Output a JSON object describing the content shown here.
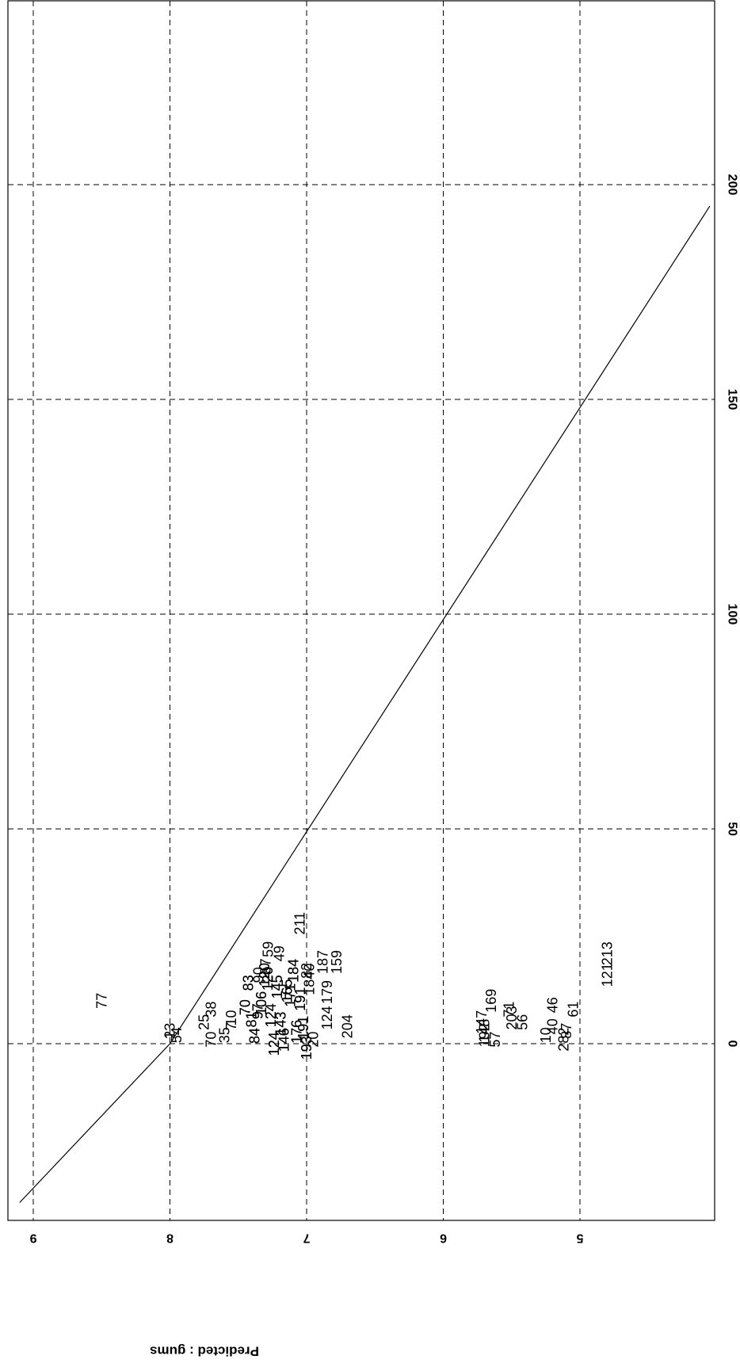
{
  "chart_data": {
    "type": "scatter",
    "title": "",
    "ylabel": "Predicted : gums",
    "xlabel": "",
    "grid": true,
    "xlim": [
      -37,
      204
    ],
    "ylim": [
      4.0,
      9.2
    ],
    "x_ticks": [
      "0",
      "50",
      "100",
      "150",
      "200"
    ],
    "y_ticks": [
      "5",
      "6",
      "7",
      "8",
      "9"
    ],
    "x_tick_values": [
      0,
      50,
      100,
      150,
      200
    ],
    "y_tick_values": [
      5,
      6,
      7,
      8,
      9
    ],
    "fit_line": [
      [
        -37,
        9.1
      ],
      [
        0,
        8.0
      ],
      [
        195,
        4.05
      ]
    ],
    "points": [
      {
        "label": "192",
        "x": 2,
        "y": 5.7
      },
      {
        "label": "211",
        "x": 28,
        "y": 7.05
      },
      {
        "label": "77",
        "x": 10,
        "y": 8.5
      },
      {
        "label": "1",
        "x": 2,
        "y": 8.0
      },
      {
        "label": "23",
        "x": 3,
        "y": 8.0
      },
      {
        "label": "54",
        "x": 2,
        "y": 7.95
      },
      {
        "label": "25",
        "x": 5,
        "y": 7.75
      },
      {
        "label": "38",
        "x": 8,
        "y": 7.7
      },
      {
        "label": "10",
        "x": 6,
        "y": 7.55
      },
      {
        "label": "70",
        "x": 1,
        "y": 7.7
      },
      {
        "label": "35",
        "x": 2,
        "y": 7.6
      },
      {
        "label": "7",
        "x": 4,
        "y": 7.55
      },
      {
        "label": "57",
        "x": 18,
        "y": 7.3
      },
      {
        "label": "90",
        "x": 16,
        "y": 7.35
      },
      {
        "label": "49",
        "x": 21,
        "y": 7.2
      },
      {
        "label": "59",
        "x": 22,
        "y": 7.28
      },
      {
        "label": "82",
        "x": 17,
        "y": 7.0
      },
      {
        "label": "187",
        "x": 19,
        "y": 6.88
      },
      {
        "label": "159",
        "x": 19,
        "y": 6.78
      },
      {
        "label": "179",
        "x": 12,
        "y": 6.85
      },
      {
        "label": "1840",
        "x": 15,
        "y": 6.98
      },
      {
        "label": "124",
        "x": 6,
        "y": 6.85
      },
      {
        "label": "204",
        "x": 4,
        "y": 6.7
      },
      {
        "label": "20",
        "x": 1,
        "y": 6.95
      },
      {
        "label": "147",
        "x": 5,
        "y": 5.72
      },
      {
        "label": "169",
        "x": 10,
        "y": 5.65
      },
      {
        "label": "148",
        "x": 3,
        "y": 5.7
      },
      {
        "label": "57",
        "x": 1,
        "y": 5.62
      },
      {
        "label": "71",
        "x": 8,
        "y": 5.52
      },
      {
        "label": "203",
        "x": 6,
        "y": 5.5
      },
      {
        "label": "56",
        "x": 5,
        "y": 5.42
      },
      {
        "label": "46",
        "x": 9,
        "y": 5.2
      },
      {
        "label": "61",
        "x": 8,
        "y": 5.05
      },
      {
        "label": "40",
        "x": 4,
        "y": 5.2
      },
      {
        "label": "10",
        "x": 2,
        "y": 5.25
      },
      {
        "label": "282",
        "x": 1,
        "y": 5.12
      },
      {
        "label": "87",
        "x": 3,
        "y": 5.1
      },
      {
        "label": "121",
        "x": 16,
        "y": 4.8
      },
      {
        "label": "213",
        "x": 21,
        "y": 4.8
      }
    ]
  }
}
